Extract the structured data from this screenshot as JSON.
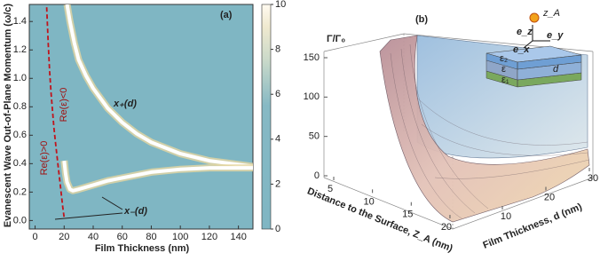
{
  "chart_data": [
    {
      "type": "heatmap",
      "label": "(a)",
      "x_label": "Film Thickness (nm)",
      "y_label": "Evanescent Wave Out-of-Plane Momentum (ω/c)",
      "xlim": [
        -4,
        150
      ],
      "xticks": [
        0,
        20,
        40,
        60,
        80,
        100,
        120,
        140
      ],
      "ylim": [
        -0.06,
        1.52
      ],
      "yticks": [
        {
          "value": 0,
          "label": "0.0"
        },
        {
          "value": 0.2,
          "label": "0.2"
        },
        {
          "value": 0.4,
          "label": "0.4"
        },
        {
          "value": 0.6,
          "label": "0.6"
        },
        {
          "value": 0.8,
          "label": "0.8"
        },
        {
          "value": 1,
          "label": "1.0"
        },
        {
          "value": 1.2,
          "label": "1.2"
        },
        {
          "value": 1.4,
          "label": "1.4"
        }
      ],
      "colorbar": {
        "lim": [
          0,
          10
        ],
        "ticks": [
          0,
          2,
          4,
          6,
          8,
          10
        ]
      },
      "series": [
        {
          "name": "x₊(d)",
          "color": "#ffffff",
          "x": [
            22,
            24,
            27,
            30,
            35,
            40,
            50,
            60,
            70,
            80,
            100,
            120,
            150
          ],
          "values": [
            1.52,
            1.4,
            1.25,
            1.13,
            1.02,
            0.93,
            0.79,
            0.69,
            0.61,
            0.55,
            0.47,
            0.42,
            0.38
          ]
        },
        {
          "name": "x₋(d)",
          "color": "#ffffff",
          "x": [
            20,
            21,
            22,
            24,
            26,
            30,
            40,
            50,
            60,
            80,
            100,
            120,
            150
          ],
          "values": [
            0.42,
            0.33,
            0.27,
            0.22,
            0.21,
            0.22,
            0.25,
            0.28,
            0.3,
            0.34,
            0.36,
            0.37,
            0.37
          ]
        },
        {
          "color": "#c0141c",
          "x": [
            8,
            9,
            10,
            11,
            12,
            13,
            14,
            15,
            16,
            17,
            18,
            19,
            20
          ],
          "values": [
            1.5,
            1.25,
            1.05,
            0.9,
            0.77,
            0.65,
            0.55,
            0.46,
            0.37,
            0.28,
            0.19,
            0.1,
            0.02
          ]
        }
      ],
      "annotations": [
        "Re(ε)>0",
        "Re(ε)<0"
      ]
    },
    {
      "type": "surface3d",
      "label": "(b)",
      "z_label": "Γ/Γ₀",
      "x_label": "Distance to the Surface, Z_A (nm)",
      "y_label": "Film Thickness, d (nm)",
      "zlim": [
        0,
        150
      ],
      "zticks": [
        0,
        50,
        100,
        150
      ],
      "xticks": [
        5,
        10,
        15,
        20
      ],
      "yticks": [
        10,
        20,
        30
      ],
      "inset": {
        "labels": [
          "z_A",
          "e_z",
          "e_x",
          "e_y",
          "ε₂",
          "ε",
          "ε₁",
          "d"
        ]
      }
    }
  ]
}
